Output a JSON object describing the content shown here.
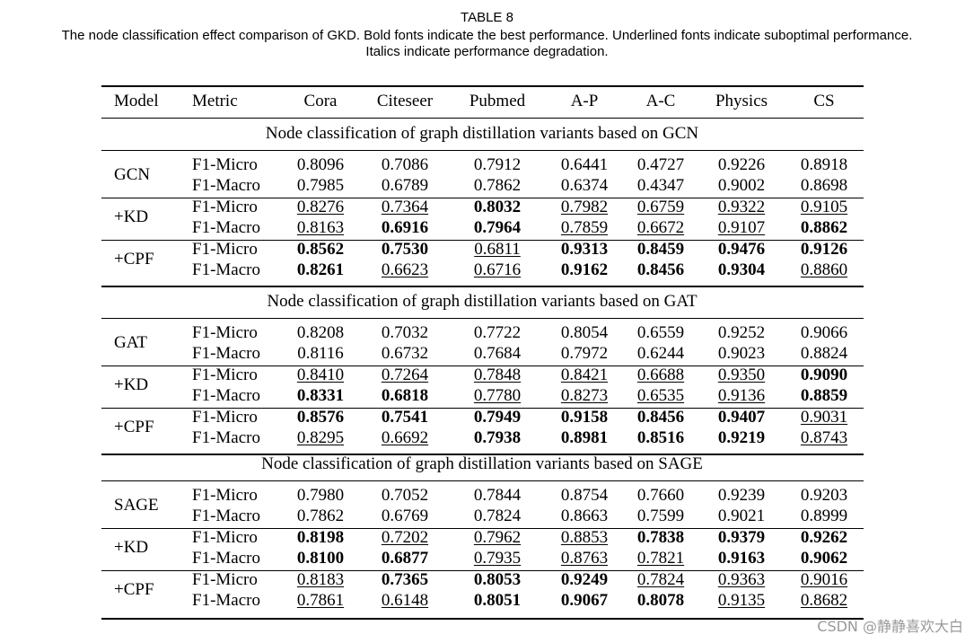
{
  "title": "TABLE 8",
  "caption": [
    "The node classification effect comparison of GKD. Bold fonts indicate the best performance. Underlined fonts indicate suboptimal performance.",
    "Italics indicate performance degradation."
  ],
  "table": {
    "header": [
      "Model",
      "Metric",
      "Cora",
      "Citeseer",
      "Pubmed",
      "A-P",
      "A-C",
      "Physics",
      "CS"
    ],
    "sections": [
      {
        "title": "Node classification of graph distillation variants based on GCN",
        "groups": [
          {
            "model": "GCN",
            "rows": [
              {
                "metric": "F1-Micro",
                "values": [
                  "0.8096",
                  "0.7086",
                  "0.7912",
                  "0.6441",
                  "0.4727",
                  "0.9226",
                  "0.8918"
                ],
                "styles": [
                  "normal",
                  "normal",
                  "normal",
                  "normal",
                  "normal",
                  "normal",
                  "normal"
                ]
              },
              {
                "metric": "F1-Macro",
                "values": [
                  "0.7985",
                  "0.6789",
                  "0.7862",
                  "0.6374",
                  "0.4347",
                  "0.9002",
                  "0.8698"
                ],
                "styles": [
                  "normal",
                  "normal",
                  "normal",
                  "normal",
                  "normal",
                  "normal",
                  "normal"
                ]
              }
            ]
          },
          {
            "model": "+KD",
            "rows": [
              {
                "metric": "F1-Micro",
                "values": [
                  "0.8276",
                  "0.7364",
                  "0.8032",
                  "0.7982",
                  "0.6759",
                  "0.9322",
                  "0.9105"
                ],
                "styles": [
                  "underline",
                  "underline",
                  "bold",
                  "underline",
                  "underline",
                  "underline",
                  "underline"
                ]
              },
              {
                "metric": "F1-Macro",
                "values": [
                  "0.8163",
                  "0.6916",
                  "0.7964",
                  "0.7859",
                  "0.6672",
                  "0.9107",
                  "0.8862"
                ],
                "styles": [
                  "underline",
                  "bold",
                  "bold",
                  "underline",
                  "underline",
                  "underline",
                  "bold"
                ]
              }
            ]
          },
          {
            "model": "+CPF",
            "rows": [
              {
                "metric": "F1-Micro",
                "values": [
                  "0.8562",
                  "0.7530",
                  "0.6811",
                  "0.9313",
                  "0.8459",
                  "0.9476",
                  "0.9126"
                ],
                "styles": [
                  "bold",
                  "bold",
                  "underline",
                  "bold",
                  "bold",
                  "bold",
                  "bold"
                ]
              },
              {
                "metric": "F1-Macro",
                "values": [
                  "0.8261",
                  "0.6623",
                  "0.6716",
                  "0.9162",
                  "0.8456",
                  "0.9304",
                  "0.8860"
                ],
                "styles": [
                  "bold",
                  "underline",
                  "underline",
                  "bold",
                  "bold",
                  "bold",
                  "underline"
                ]
              }
            ]
          }
        ]
      },
      {
        "title": "Node classification of graph distillation variants based on GAT",
        "groups": [
          {
            "model": "GAT",
            "rows": [
              {
                "metric": "F1-Micro",
                "values": [
                  "0.8208",
                  "0.7032",
                  "0.7722",
                  "0.8054",
                  "0.6559",
                  "0.9252",
                  "0.9066"
                ],
                "styles": [
                  "normal",
                  "normal",
                  "normal",
                  "normal",
                  "normal",
                  "normal",
                  "normal"
                ]
              },
              {
                "metric": "F1-Macro",
                "values": [
                  "0.8116",
                  "0.6732",
                  "0.7684",
                  "0.7972",
                  "0.6244",
                  "0.9023",
                  "0.8824"
                ],
                "styles": [
                  "normal",
                  "normal",
                  "normal",
                  "normal",
                  "normal",
                  "normal",
                  "normal"
                ]
              }
            ]
          },
          {
            "model": "+KD",
            "rows": [
              {
                "metric": "F1-Micro",
                "values": [
                  "0.8410",
                  "0.7264",
                  "0.7848",
                  "0.8421",
                  "0.6688",
                  "0.9350",
                  "0.9090"
                ],
                "styles": [
                  "underline",
                  "underline",
                  "underline",
                  "underline",
                  "underline",
                  "underline",
                  "bold"
                ]
              },
              {
                "metric": "F1-Macro",
                "values": [
                  "0.8331",
                  "0.6818",
                  "0.7780",
                  "0.8273",
                  "0.6535",
                  "0.9136",
                  "0.8859"
                ],
                "styles": [
                  "bold",
                  "bold",
                  "underline",
                  "underline",
                  "underline",
                  "underline",
                  "bold"
                ]
              }
            ]
          },
          {
            "model": "+CPF",
            "rows": [
              {
                "metric": "F1-Micro",
                "values": [
                  "0.8576",
                  "0.7541",
                  "0.7949",
                  "0.9158",
                  "0.8456",
                  "0.9407",
                  "0.9031"
                ],
                "styles": [
                  "bold",
                  "bold",
                  "bold",
                  "bold",
                  "bold",
                  "bold",
                  "underline"
                ]
              },
              {
                "metric": "F1-Macro",
                "values": [
                  "0.8295",
                  "0.6692",
                  "0.7938",
                  "0.8981",
                  "0.8516",
                  "0.9219",
                  "0.8743"
                ],
                "styles": [
                  "underline",
                  "underline",
                  "bold",
                  "bold",
                  "bold",
                  "bold",
                  "underline"
                ]
              }
            ]
          }
        ]
      },
      {
        "title": "Node classification of graph distillation variants based on SAGE",
        "groups": [
          {
            "model": "SAGE",
            "rows": [
              {
                "metric": "F1-Micro",
                "values": [
                  "0.7980",
                  "0.7052",
                  "0.7844",
                  "0.8754",
                  "0.7660",
                  "0.9239",
                  "0.9203"
                ],
                "styles": [
                  "normal",
                  "normal",
                  "normal",
                  "normal",
                  "normal",
                  "normal",
                  "normal"
                ]
              },
              {
                "metric": "F1-Macro",
                "values": [
                  "0.7862",
                  "0.6769",
                  "0.7824",
                  "0.8663",
                  "0.7599",
                  "0.9021",
                  "0.8999"
                ],
                "styles": [
                  "normal",
                  "normal",
                  "normal",
                  "normal",
                  "normal",
                  "normal",
                  "normal"
                ]
              }
            ]
          },
          {
            "model": "+KD",
            "rows": [
              {
                "metric": "F1-Micro",
                "values": [
                  "0.8198",
                  "0.7202",
                  "0.7962",
                  "0.8853",
                  "0.7838",
                  "0.9379",
                  "0.9262"
                ],
                "styles": [
                  "bold",
                  "underline",
                  "underline",
                  "underline",
                  "bold",
                  "bold",
                  "bold"
                ]
              },
              {
                "metric": "F1-Macro",
                "values": [
                  "0.8100",
                  "0.6877",
                  "0.7935",
                  "0.8763",
                  "0.7821",
                  "0.9163",
                  "0.9062"
                ],
                "styles": [
                  "bold",
                  "bold",
                  "underline",
                  "underline",
                  "underline",
                  "bold",
                  "bold"
                ]
              }
            ]
          },
          {
            "model": "+CPF",
            "rows": [
              {
                "metric": "F1-Micro",
                "values": [
                  "0.8183",
                  "0.7365",
                  "0.8053",
                  "0.9249",
                  "0.7824",
                  "0.9363",
                  "0.9016"
                ],
                "styles": [
                  "underline",
                  "bold",
                  "bold",
                  "bold",
                  "underline",
                  "underline",
                  "underline"
                ]
              },
              {
                "metric": "F1-Macro",
                "values": [
                  "0.7861",
                  "0.6148",
                  "0.8051",
                  "0.9067",
                  "0.8078",
                  "0.9135",
                  "0.8682"
                ],
                "styles": [
                  "underline",
                  "underline",
                  "bold",
                  "bold",
                  "bold",
                  "underline",
                  "underline"
                ]
              }
            ]
          }
        ]
      }
    ]
  },
  "watermark": "CSDN @静静喜欢大白"
}
